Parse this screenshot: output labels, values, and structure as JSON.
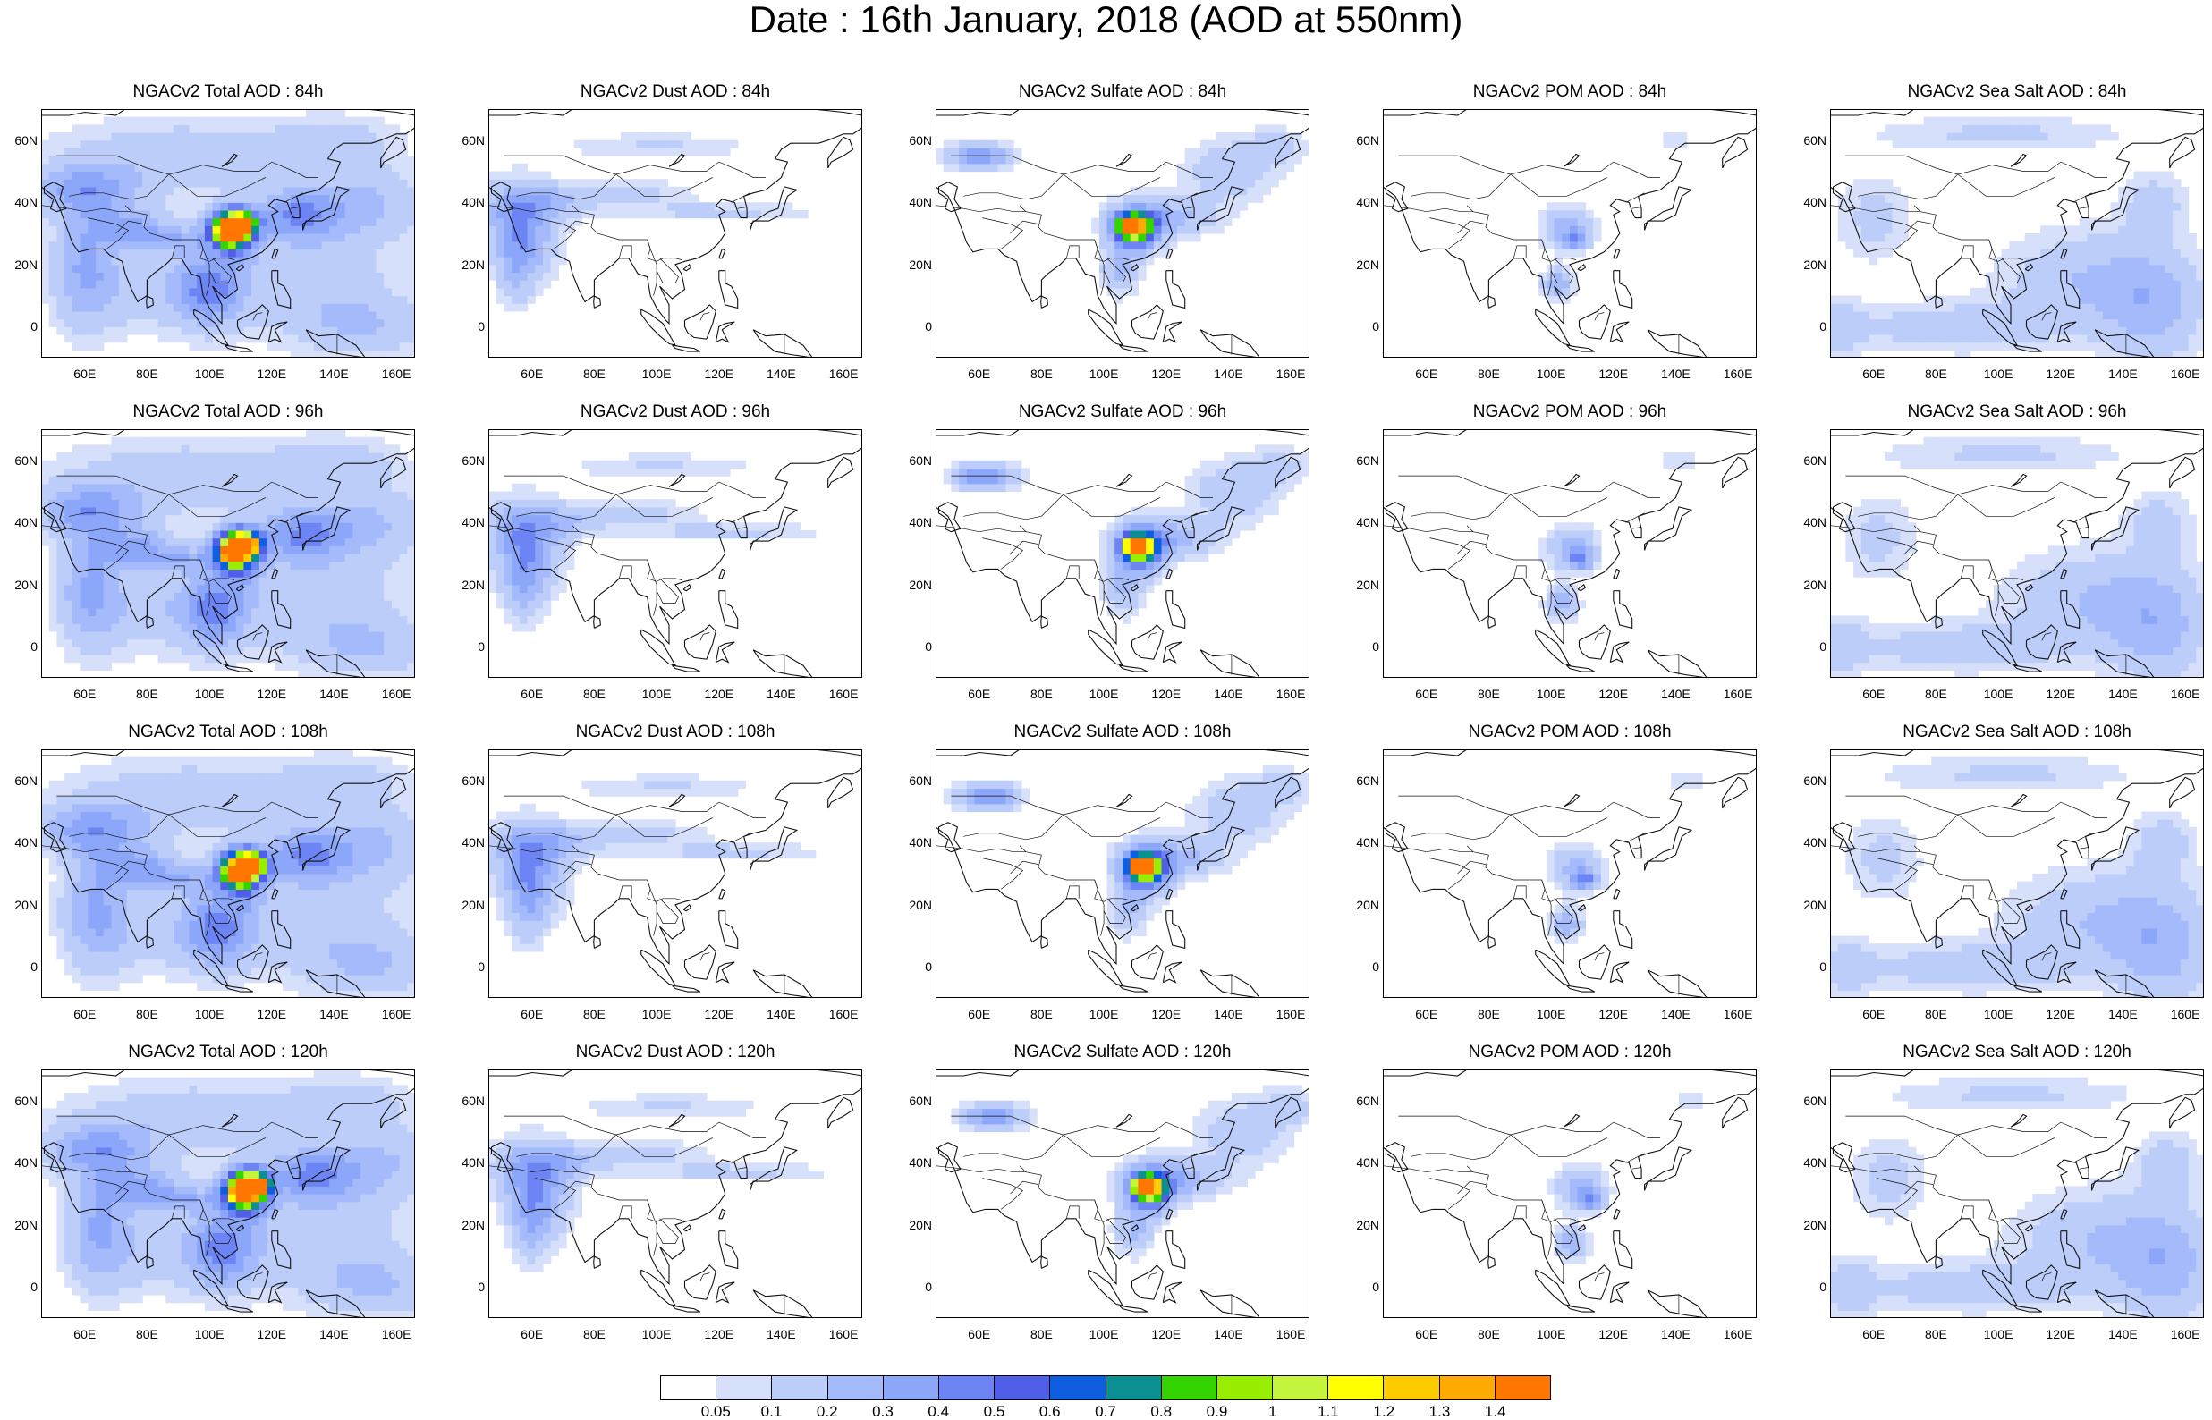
{
  "title": "Date : 16th January, 2018 (AOD at 550nm)",
  "lat_ticks": [
    "60N",
    "40N",
    "20N",
    "0"
  ],
  "lon_ticks": [
    "60E",
    "80E",
    "100E",
    "120E",
    "140E",
    "160E"
  ],
  "panels": [
    [
      "NGACv2 Total AOD : 84h",
      "NGACv2 Dust AOD : 84h",
      "NGACv2 Sulfate AOD : 84h",
      "NGACv2 POM AOD : 84h",
      "NGACv2 Sea Salt AOD : 84h"
    ],
    [
      "NGACv2 Total AOD : 96h",
      "NGACv2 Dust AOD : 96h",
      "NGACv2 Sulfate AOD : 96h",
      "NGACv2 POM AOD : 96h",
      "NGACv2 Sea Salt AOD : 96h"
    ],
    [
      "NGACv2 Total AOD : 108h",
      "NGACv2 Dust AOD : 108h",
      "NGACv2 Sulfate AOD : 108h",
      "NGACv2 POM AOD : 108h",
      "NGACv2 Sea Salt AOD : 108h"
    ],
    [
      "NGACv2 Total AOD : 120h",
      "NGACv2 Dust AOD : 120h",
      "NGACv2 Sulfate AOD : 120h",
      "NGACv2 POM AOD : 120h",
      "NGACv2 Sea Salt  AOD : 120h"
    ]
  ],
  "colorbar": {
    "labels": [
      "0.05",
      "0.1",
      "0.2",
      "0.3",
      "0.4",
      "0.5",
      "0.6",
      "0.7",
      "0.8",
      "0.9",
      "1",
      "1.1",
      "1.2",
      "1.3",
      "1.4"
    ],
    "colors": [
      "#ffffff",
      "#d6e0fa",
      "#bccdfa",
      "#a4bafa",
      "#8ca6fa",
      "#6c84f4",
      "#4f5fe8",
      "#0d5fe0",
      "#0b8f90",
      "#33d400",
      "#99ee00",
      "#c4f53c",
      "#ffff00",
      "#ffcc00",
      "#ffaa00",
      "#ff7700",
      "#ff2000"
    ]
  }
}
